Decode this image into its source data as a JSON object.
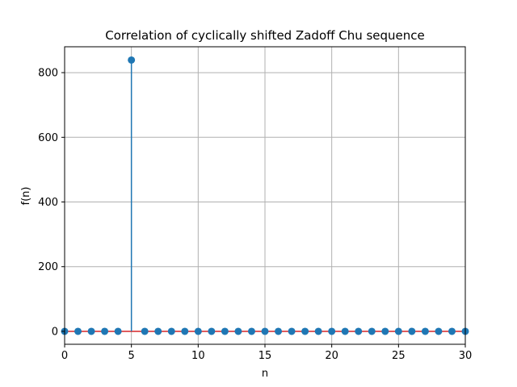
{
  "chart_data": {
    "type": "stem",
    "title": "Correlation of cyclically shifted Zadoff Chu sequence",
    "xlabel": "n",
    "ylabel": "f(n)",
    "xlim": [
      0,
      30
    ],
    "ylim": [
      -40,
      880
    ],
    "xticks": [
      0,
      5,
      10,
      15,
      20,
      25,
      30
    ],
    "yticks": [
      0,
      200,
      400,
      600,
      800
    ],
    "grid": true,
    "x": [
      0,
      1,
      2,
      3,
      4,
      5,
      6,
      7,
      8,
      9,
      10,
      11,
      12,
      13,
      14,
      15,
      16,
      17,
      18,
      19,
      20,
      21,
      22,
      23,
      24,
      25,
      26,
      27,
      28,
      29,
      30
    ],
    "y": [
      0,
      0,
      0,
      0,
      0,
      839,
      0,
      0,
      0,
      0,
      0,
      0,
      0,
      0,
      0,
      0,
      0,
      0,
      0,
      0,
      0,
      0,
      0,
      0,
      0,
      0,
      0,
      0,
      0,
      0,
      0
    ],
    "colors": {
      "stem": "#1f77b4",
      "baseline": "#d62728",
      "grid": "#b0b0b0"
    }
  }
}
